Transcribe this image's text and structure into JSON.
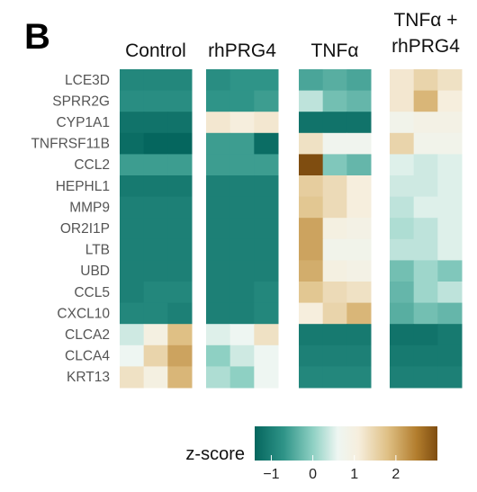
{
  "panel_label": "B",
  "chart_data": {
    "type": "heatmap",
    "groups": [
      {
        "label_lines": [
          "Control"
        ],
        "replicates": 3
      },
      {
        "label_lines": [
          "rhPRG4"
        ],
        "replicates": 3
      },
      {
        "label_lines": [
          "TNFα"
        ],
        "replicates": 3
      },
      {
        "label_lines": [
          "TNFα +",
          "rhPRG4"
        ],
        "replicates": 3
      }
    ],
    "genes": [
      "LCE3D",
      "SPRR2G",
      "CYP1A1",
      "TNFRSF11B",
      "CCL2",
      "HEPHL1",
      "MMP9",
      "OR2I1P",
      "LTB",
      "UBD",
      "CCL5",
      "CXCL10",
      "CLCA2",
      "CLCA4",
      "KRT13"
    ],
    "z_scores": [
      [
        -0.9,
        -0.9,
        -0.9,
        -0.8,
        -0.7,
        -0.7,
        -0.5,
        -0.4,
        -0.5,
        1.2,
        1.5,
        1.3
      ],
      [
        -0.8,
        -0.8,
        -0.8,
        -0.7,
        -0.7,
        -0.6,
        0.3,
        -0.2,
        -0.3,
        1.2,
        1.9,
        1.1
      ],
      [
        -1.2,
        -1.2,
        -1.2,
        1.2,
        1.1,
        1.2,
        -1.2,
        -1.2,
        -1.2,
        0.8,
        0.9,
        0.9
      ],
      [
        -1.3,
        -1.6,
        -1.7,
        -0.6,
        -0.6,
        -1.3,
        1.3,
        0.7,
        0.7,
        1.5,
        0.8,
        0.8
      ],
      [
        -0.6,
        -0.6,
        -0.6,
        -0.6,
        -0.6,
        -0.6,
        3.0,
        -0.1,
        -0.3,
        0.5,
        0.4,
        0.5
      ],
      [
        -1.1,
        -1.1,
        -1.1,
        -1.0,
        -1.0,
        -1.0,
        1.6,
        1.4,
        1.1,
        0.4,
        0.4,
        0.5
      ],
      [
        -1.0,
        -1.0,
        -1.0,
        -1.0,
        -1.0,
        -1.0,
        1.7,
        1.4,
        1.1,
        0.3,
        0.5,
        0.5
      ],
      [
        -1.0,
        -1.0,
        -1.0,
        -1.0,
        -1.0,
        -1.0,
        2.1,
        1.0,
        0.9,
        0.2,
        0.3,
        0.5
      ],
      [
        -1.0,
        -1.0,
        -1.0,
        -1.0,
        -1.0,
        -1.0,
        2.1,
        0.8,
        0.8,
        0.3,
        0.3,
        0.5
      ],
      [
        -1.0,
        -1.0,
        -1.0,
        -1.0,
        -1.0,
        -1.0,
        2.0,
        1.0,
        0.9,
        -0.2,
        0.1,
        -0.1
      ],
      [
        -1.0,
        -0.9,
        -0.9,
        -1.0,
        -1.0,
        -0.9,
        1.7,
        1.4,
        1.3,
        -0.3,
        0.1,
        0.3
      ],
      [
        -0.9,
        -0.9,
        -1.0,
        -1.0,
        -1.0,
        -0.9,
        1.1,
        1.5,
        1.9,
        -0.4,
        -0.2,
        -0.3
      ],
      [
        0.4,
        1.0,
        1.8,
        0.5,
        0.6,
        1.3,
        -1.1,
        -1.1,
        -1.1,
        -1.2,
        -1.2,
        -1.1
      ],
      [
        0.6,
        1.5,
        2.1,
        0.0,
        0.4,
        0.6,
        -1.0,
        -1.0,
        -1.0,
        -1.1,
        -1.1,
        -1.1
      ],
      [
        1.3,
        1.0,
        1.9,
        0.2,
        0.0,
        0.6,
        -0.9,
        -0.9,
        -0.9,
        -1.0,
        -1.0,
        -1.0
      ]
    ],
    "colorbar": {
      "title": "z-score",
      "range": [
        -1.4,
        3.0
      ],
      "ticks": [
        -1,
        0,
        1,
        2
      ],
      "tick_labels": [
        "−1",
        "0",
        "1",
        "2"
      ],
      "colors": [
        {
          "value": -1.4,
          "color": "#05665e"
        },
        {
          "value": -0.7,
          "color": "#2f9488"
        },
        {
          "value": 0.0,
          "color": "#8ed0c3"
        },
        {
          "value": 0.6,
          "color": "#eef6f2"
        },
        {
          "value": 1.1,
          "color": "#f6eedd"
        },
        {
          "value": 1.8,
          "color": "#dfc085"
        },
        {
          "value": 2.5,
          "color": "#b27d2d"
        },
        {
          "value": 3.0,
          "color": "#7f4d10"
        }
      ]
    }
  }
}
